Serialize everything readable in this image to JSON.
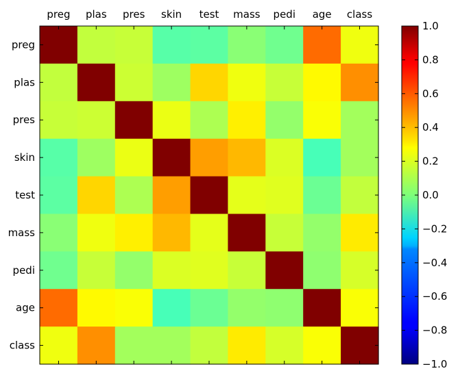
{
  "chart_data": {
    "type": "heatmap",
    "x_labels": [
      "preg",
      "plas",
      "pres",
      "skin",
      "test",
      "mass",
      "pedi",
      "age",
      "class"
    ],
    "y_labels": [
      "preg",
      "plas",
      "pres",
      "skin",
      "test",
      "mass",
      "pedi",
      "age",
      "class"
    ],
    "values": [
      [
        1.0,
        0.13,
        0.14,
        -0.08,
        -0.07,
        0.02,
        -0.03,
        0.54,
        0.22
      ],
      [
        0.13,
        1.0,
        0.15,
        0.06,
        0.33,
        0.22,
        0.14,
        0.26,
        0.47
      ],
      [
        0.14,
        0.15,
        1.0,
        0.21,
        0.09,
        0.28,
        0.04,
        0.24,
        0.07
      ],
      [
        -0.08,
        0.06,
        0.21,
        1.0,
        0.44,
        0.39,
        0.18,
        -0.11,
        0.07
      ],
      [
        -0.07,
        0.33,
        0.09,
        0.44,
        1.0,
        0.2,
        0.19,
        -0.04,
        0.13
      ],
      [
        0.02,
        0.22,
        0.28,
        0.39,
        0.2,
        1.0,
        0.14,
        0.04,
        0.29
      ],
      [
        -0.03,
        0.14,
        0.04,
        0.18,
        0.19,
        0.14,
        1.0,
        0.03,
        0.17
      ],
      [
        0.54,
        0.26,
        0.24,
        -0.11,
        -0.04,
        0.04,
        0.03,
        1.0,
        0.24
      ],
      [
        0.22,
        0.47,
        0.07,
        0.07,
        0.13,
        0.29,
        0.17,
        0.24,
        1.0
      ]
    ],
    "colormap": "jet",
    "vmin": -1.0,
    "vmax": 1.0,
    "colorbar_ticks": [
      "1.0",
      "0.8",
      "0.6",
      "0.4",
      "0.2",
      "0.0",
      "−0.2",
      "−0.4",
      "−0.6",
      "−0.8",
      "−1.0"
    ],
    "x_label_position": "top",
    "grid": false
  }
}
